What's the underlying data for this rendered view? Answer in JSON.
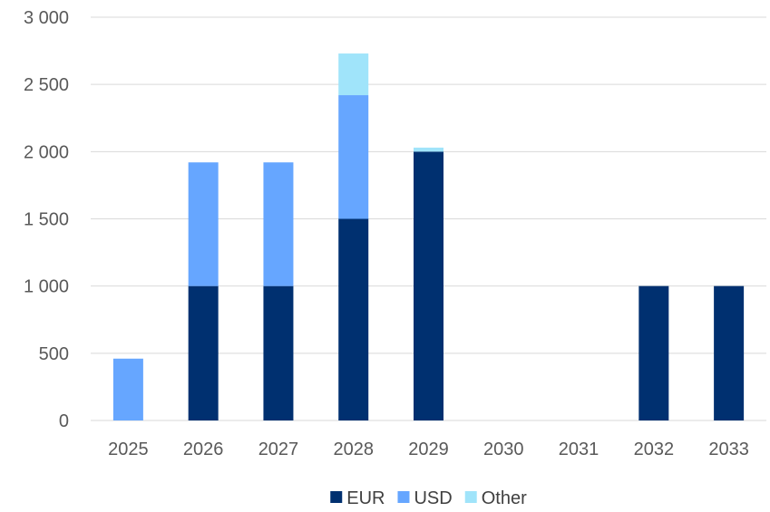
{
  "chart_data": {
    "type": "bar",
    "stacked": true,
    "categories": [
      "2025",
      "2026",
      "2027",
      "2028",
      "2029",
      "2030",
      "2031",
      "2032",
      "2033"
    ],
    "series": [
      {
        "name": "EUR",
        "color": "#003070",
        "values": [
          0,
          1000,
          1000,
          1500,
          2000,
          0,
          0,
          1000,
          1000
        ]
      },
      {
        "name": "USD",
        "color": "#66A6FF",
        "values": [
          460,
          920,
          920,
          920,
          0,
          0,
          0,
          0,
          0
        ]
      },
      {
        "name": "Other",
        "color": "#A0E4FA",
        "values": [
          0,
          0,
          0,
          310,
          30,
          0,
          0,
          0,
          0
        ]
      }
    ],
    "ylim": [
      0,
      3000
    ],
    "yticks": [
      0,
      500,
      1000,
      1500,
      2000,
      2500,
      3000
    ],
    "ytick_labels": [
      "0",
      "500",
      "1 000",
      "1 500",
      "2 000",
      "2 500",
      "3 000"
    ],
    "grid": true,
    "gridline_color": "#D9D9D9",
    "legend_position": "bottom",
    "title": "",
    "xlabel": "",
    "ylabel": ""
  }
}
